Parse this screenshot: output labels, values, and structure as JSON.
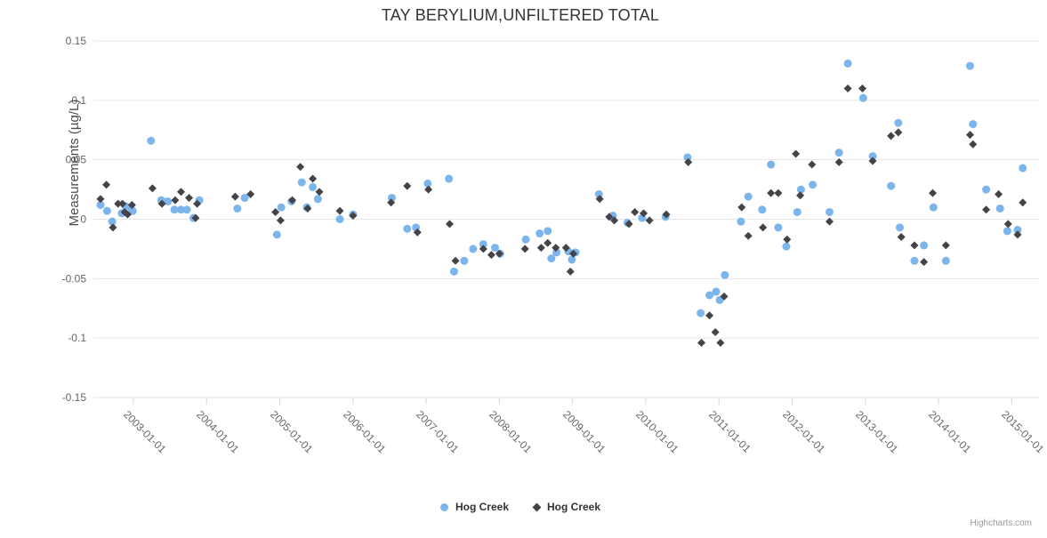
{
  "title": "TAY BERYLIUM,UNFILTERED TOTAL",
  "credit": "Highcharts.com",
  "colors": {
    "series1": "#7cb5ec",
    "series2": "#434348",
    "grid": "#e6e6e6",
    "tick": "#ccd6eb",
    "axis_text": "#666666",
    "title_text": "#333333"
  },
  "legend": [
    {
      "label": "Hog Creek",
      "marker": "circle",
      "color": "#7cb5ec"
    },
    {
      "label": "Hog Creek",
      "marker": "diamond",
      "color": "#434348"
    }
  ],
  "chart_data": {
    "type": "scatter",
    "title": "TAY BERYLIUM,UNFILTERED TOTAL",
    "xlabel": "",
    "ylabel": "Measurements (µg/L)",
    "ylim": [
      -0.15,
      0.15
    ],
    "xlim_years": [
      2002.453,
      2015.384
    ],
    "grid": "horizontal",
    "legend_position": "bottom",
    "y_ticks": [
      {
        "value": 0.15,
        "label": "0.15"
      },
      {
        "value": 0.1,
        "label": "0.1"
      },
      {
        "value": 0.05,
        "label": "0.05"
      },
      {
        "value": 0,
        "label": "0"
      },
      {
        "value": -0.05,
        "label": "-0.05"
      },
      {
        "value": -0.1,
        "label": "-0.1"
      },
      {
        "value": -0.15,
        "label": "-0.15"
      }
    ],
    "x_ticks": [
      {
        "year": 2003,
        "label": "2003-01-01"
      },
      {
        "year": 2004,
        "label": "2004-01-01"
      },
      {
        "year": 2005,
        "label": "2005-01-01"
      },
      {
        "year": 2006,
        "label": "2006-01-01"
      },
      {
        "year": 2007,
        "label": "2007-01-01"
      },
      {
        "year": 2008,
        "label": "2008-01-01"
      },
      {
        "year": 2009,
        "label": "2009-01-01"
      },
      {
        "year": 2010,
        "label": "2010-01-01"
      },
      {
        "year": 2011,
        "label": "2011-01-01"
      },
      {
        "year": 2012,
        "label": "2012-01-01"
      },
      {
        "year": 2013,
        "label": "2013-01-01"
      },
      {
        "year": 2014,
        "label": "2014-01-01"
      },
      {
        "year": 2015,
        "label": "2015-01-01"
      }
    ],
    "series": [
      {
        "name": "Hog Creek",
        "marker": "circle",
        "color": "#7cb5ec",
        "points": [
          [
            2002.55,
            0.012
          ],
          [
            2002.64,
            0.007
          ],
          [
            2002.71,
            -0.002
          ],
          [
            2002.84,
            0.005
          ],
          [
            2002.89,
            0.011
          ],
          [
            2002.96,
            0.01
          ],
          [
            2002.99,
            0.007
          ],
          [
            2003.24,
            0.066
          ],
          [
            2003.38,
            0.016
          ],
          [
            2003.47,
            0.015
          ],
          [
            2003.56,
            0.008
          ],
          [
            2003.65,
            0.008
          ],
          [
            2003.73,
            0.008
          ],
          [
            2003.82,
            0.001
          ],
          [
            2003.9,
            0.016
          ],
          [
            2004.42,
            0.009
          ],
          [
            2004.52,
            0.018
          ],
          [
            2004.96,
            -0.013
          ],
          [
            2005.02,
            0.01
          ],
          [
            2005.16,
            0.015
          ],
          [
            2005.3,
            0.031
          ],
          [
            2005.37,
            0.01
          ],
          [
            2005.45,
            0.027
          ],
          [
            2005.52,
            0.017
          ],
          [
            2005.82,
            0.0
          ],
          [
            2006.0,
            0.004
          ],
          [
            2006.53,
            0.018
          ],
          [
            2006.74,
            -0.008
          ],
          [
            2006.86,
            -0.007
          ],
          [
            2007.02,
            0.03
          ],
          [
            2007.31,
            0.034
          ],
          [
            2007.38,
            -0.044
          ],
          [
            2007.52,
            -0.035
          ],
          [
            2007.64,
            -0.025
          ],
          [
            2007.78,
            -0.021
          ],
          [
            2007.94,
            -0.024
          ],
          [
            2008.01,
            -0.029
          ],
          [
            2008.36,
            -0.017
          ],
          [
            2008.55,
            -0.012
          ],
          [
            2008.66,
            -0.01
          ],
          [
            2008.71,
            -0.033
          ],
          [
            2008.78,
            -0.028
          ],
          [
            2008.94,
            -0.027
          ],
          [
            2008.99,
            -0.034
          ],
          [
            2009.04,
            -0.028
          ],
          [
            2009.36,
            0.021
          ],
          [
            2009.55,
            0.003
          ],
          [
            2009.75,
            -0.003
          ],
          [
            2009.95,
            0.001
          ],
          [
            2010.27,
            0.002
          ],
          [
            2010.57,
            0.052
          ],
          [
            2010.75,
            -0.079
          ],
          [
            2010.87,
            -0.064
          ],
          [
            2010.96,
            -0.061
          ],
          [
            2011.01,
            -0.068
          ],
          [
            2011.08,
            -0.047
          ],
          [
            2011.3,
            -0.002
          ],
          [
            2011.4,
            0.019
          ],
          [
            2011.59,
            0.008
          ],
          [
            2011.71,
            0.046
          ],
          [
            2011.81,
            -0.007
          ],
          [
            2011.92,
            -0.023
          ],
          [
            2012.07,
            0.006
          ],
          [
            2012.12,
            0.025
          ],
          [
            2012.28,
            0.029
          ],
          [
            2012.51,
            0.006
          ],
          [
            2012.64,
            0.056
          ],
          [
            2012.76,
            0.131
          ],
          [
            2012.97,
            0.102
          ],
          [
            2013.1,
            0.053
          ],
          [
            2013.35,
            0.028
          ],
          [
            2013.45,
            0.081
          ],
          [
            2013.47,
            -0.007
          ],
          [
            2013.67,
            -0.035
          ],
          [
            2013.8,
            -0.022
          ],
          [
            2013.93,
            0.01
          ],
          [
            2014.1,
            -0.035
          ],
          [
            2014.43,
            0.129
          ],
          [
            2014.47,
            0.08
          ],
          [
            2014.65,
            0.025
          ],
          [
            2014.84,
            0.009
          ],
          [
            2014.94,
            -0.01
          ],
          [
            2015.08,
            -0.009
          ],
          [
            2015.15,
            0.043
          ]
        ]
      },
      {
        "name": "Hog Creek",
        "marker": "diamond",
        "color": "#434348",
        "points": [
          [
            2002.55,
            0.017
          ],
          [
            2002.63,
            0.029
          ],
          [
            2002.72,
            -0.007
          ],
          [
            2002.79,
            0.013
          ],
          [
            2002.85,
            0.013
          ],
          [
            2002.88,
            0.006
          ],
          [
            2002.92,
            0.004
          ],
          [
            2002.98,
            0.012
          ],
          [
            2003.26,
            0.026
          ],
          [
            2003.39,
            0.013
          ],
          [
            2003.57,
            0.016
          ],
          [
            2003.65,
            0.023
          ],
          [
            2003.76,
            0.018
          ],
          [
            2003.85,
            0.001
          ],
          [
            2003.87,
            0.013
          ],
          [
            2004.39,
            0.019
          ],
          [
            2004.6,
            0.021
          ],
          [
            2004.94,
            0.006
          ],
          [
            2005.01,
            -0.001
          ],
          [
            2005.17,
            0.016
          ],
          [
            2005.28,
            0.044
          ],
          [
            2005.38,
            0.009
          ],
          [
            2005.45,
            0.034
          ],
          [
            2005.54,
            0.023
          ],
          [
            2005.82,
            0.007
          ],
          [
            2006.0,
            0.003
          ],
          [
            2006.52,
            0.014
          ],
          [
            2006.74,
            0.028
          ],
          [
            2006.88,
            -0.011
          ],
          [
            2007.03,
            0.025
          ],
          [
            2007.32,
            -0.004
          ],
          [
            2007.4,
            -0.035
          ],
          [
            2007.78,
            -0.025
          ],
          [
            2007.89,
            -0.03
          ],
          [
            2008.0,
            -0.029
          ],
          [
            2008.35,
            -0.025
          ],
          [
            2008.57,
            -0.024
          ],
          [
            2008.66,
            -0.02
          ],
          [
            2008.77,
            -0.024
          ],
          [
            2008.91,
            -0.024
          ],
          [
            2008.97,
            -0.044
          ],
          [
            2009.01,
            -0.029
          ],
          [
            2009.37,
            0.017
          ],
          [
            2009.5,
            0.002
          ],
          [
            2009.57,
            -0.001
          ],
          [
            2009.77,
            -0.004
          ],
          [
            2009.85,
            0.006
          ],
          [
            2009.97,
            0.005
          ],
          [
            2010.05,
            -0.001
          ],
          [
            2010.28,
            0.004
          ],
          [
            2010.58,
            0.048
          ],
          [
            2010.76,
            -0.104
          ],
          [
            2010.87,
            -0.081
          ],
          [
            2010.95,
            -0.095
          ],
          [
            2011.02,
            -0.104
          ],
          [
            2011.07,
            -0.065
          ],
          [
            2011.31,
            0.01
          ],
          [
            2011.4,
            -0.014
          ],
          [
            2011.6,
            -0.007
          ],
          [
            2011.71,
            0.022
          ],
          [
            2011.81,
            0.022
          ],
          [
            2011.93,
            -0.017
          ],
          [
            2012.05,
            0.055
          ],
          [
            2012.11,
            0.02
          ],
          [
            2012.27,
            0.046
          ],
          [
            2012.51,
            -0.002
          ],
          [
            2012.64,
            0.048
          ],
          [
            2012.76,
            0.11
          ],
          [
            2012.96,
            0.11
          ],
          [
            2013.1,
            0.049
          ],
          [
            2013.35,
            0.07
          ],
          [
            2013.45,
            0.073
          ],
          [
            2013.49,
            -0.015
          ],
          [
            2013.67,
            -0.022
          ],
          [
            2013.8,
            -0.036
          ],
          [
            2013.92,
            0.022
          ],
          [
            2014.1,
            -0.022
          ],
          [
            2014.43,
            0.071
          ],
          [
            2014.47,
            0.063
          ],
          [
            2014.65,
            0.008
          ],
          [
            2014.82,
            0.021
          ],
          [
            2014.95,
            -0.004
          ],
          [
            2015.08,
            -0.013
          ],
          [
            2015.15,
            0.014
          ]
        ]
      }
    ]
  }
}
